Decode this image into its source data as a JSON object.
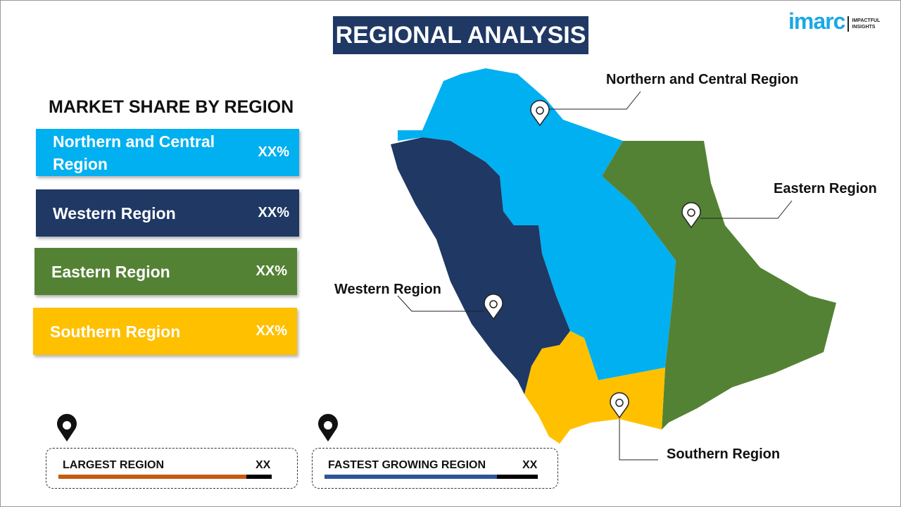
{
  "title": "REGIONAL ANALYSIS",
  "logo": {
    "word": "imarc",
    "tagline_1": "IMPACTFUL",
    "tagline_2": "INSIGHTS"
  },
  "subtitle": "MARKET SHARE BY REGION",
  "regions": [
    {
      "name": "Northern and Central Region",
      "value": "XX%",
      "color": "#00B0F0"
    },
    {
      "name": "Western Region",
      "value": "XX%",
      "color": "#1F3864"
    },
    {
      "name": "Eastern Region",
      "value": "XX%",
      "color": "#548235"
    },
    {
      "name": "Southern Region",
      "value": "XX%",
      "color": "#FFC000"
    }
  ],
  "map_labels": {
    "north": "Northern and Central Region",
    "east": "Eastern Region",
    "west": "Western Region",
    "south": "Southern Region"
  },
  "largest": {
    "label": "LARGEST REGION",
    "value": "XX",
    "bar_color": "#C55A11",
    "fill_percent": 88
  },
  "fastest": {
    "label": "FASTEST GROWING REGION",
    "value": "XX",
    "bar_color": "#2F5597",
    "fill_percent": 81
  }
}
